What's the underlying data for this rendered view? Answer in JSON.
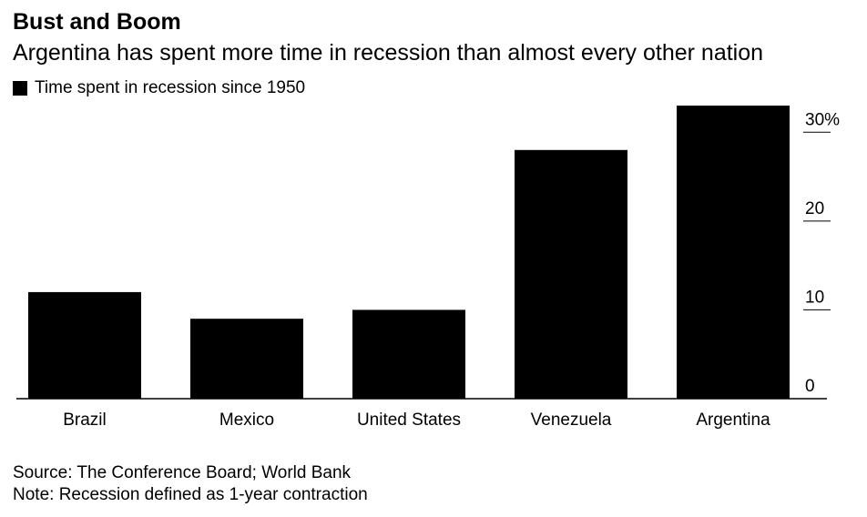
{
  "title": "Bust and Boom",
  "subtitle": "Argentina has spent more time in recession than almost every other nation",
  "legend": {
    "label": "Time spent in recession since 1950",
    "color": "#000000"
  },
  "chart_data": {
    "type": "bar",
    "title": "Bust and Boom",
    "subtitle": "Argentina has spent more time in recession than almost every other nation",
    "categories": [
      "Brazil",
      "Mexico",
      "United States",
      "Venezuela",
      "Argentina"
    ],
    "series": [
      {
        "name": "Time spent in recession since 1950",
        "values": [
          12.0,
          9.0,
          10.0,
          28.0,
          33.0
        ],
        "color": "#000000"
      }
    ],
    "ylim": [
      0,
      33
    ],
    "yticks": [
      0,
      10,
      20,
      30
    ],
    "ytick_labels": [
      "0",
      "10",
      "20",
      "30%"
    ],
    "y_axis_position": "right",
    "grid": false,
    "legend_position": "top-left"
  },
  "footer": {
    "source": "Source: The Conference Board; World Bank",
    "note": "Note: Recession defined as 1-year contraction"
  }
}
